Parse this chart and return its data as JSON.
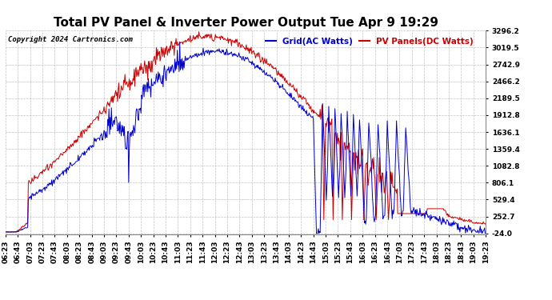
{
  "title": "Total PV Panel & Inverter Power Output Tue Apr 9 19:29",
  "copyright": "Copyright 2024 Cartronics.com",
  "legend_blue": "Grid(AC Watts)",
  "legend_red": "PV Panels(DC Watts)",
  "blue_color": "#0000cc",
  "red_color": "#cc0000",
  "background_color": "#ffffff",
  "grid_color": "#aaaaaa",
  "yticks": [
    -24.0,
    252.7,
    529.4,
    806.1,
    1082.8,
    1359.4,
    1636.1,
    1912.8,
    2189.5,
    2466.2,
    2742.9,
    3019.5,
    3296.2
  ],
  "ymin": -24.0,
  "ymax": 3296.2,
  "title_fontsize": 11,
  "tick_fontsize": 6.5,
  "copyright_fontsize": 6.5,
  "legend_fontsize": 7.5,
  "fig_width": 6.9,
  "fig_height": 3.75,
  "dpi": 100
}
